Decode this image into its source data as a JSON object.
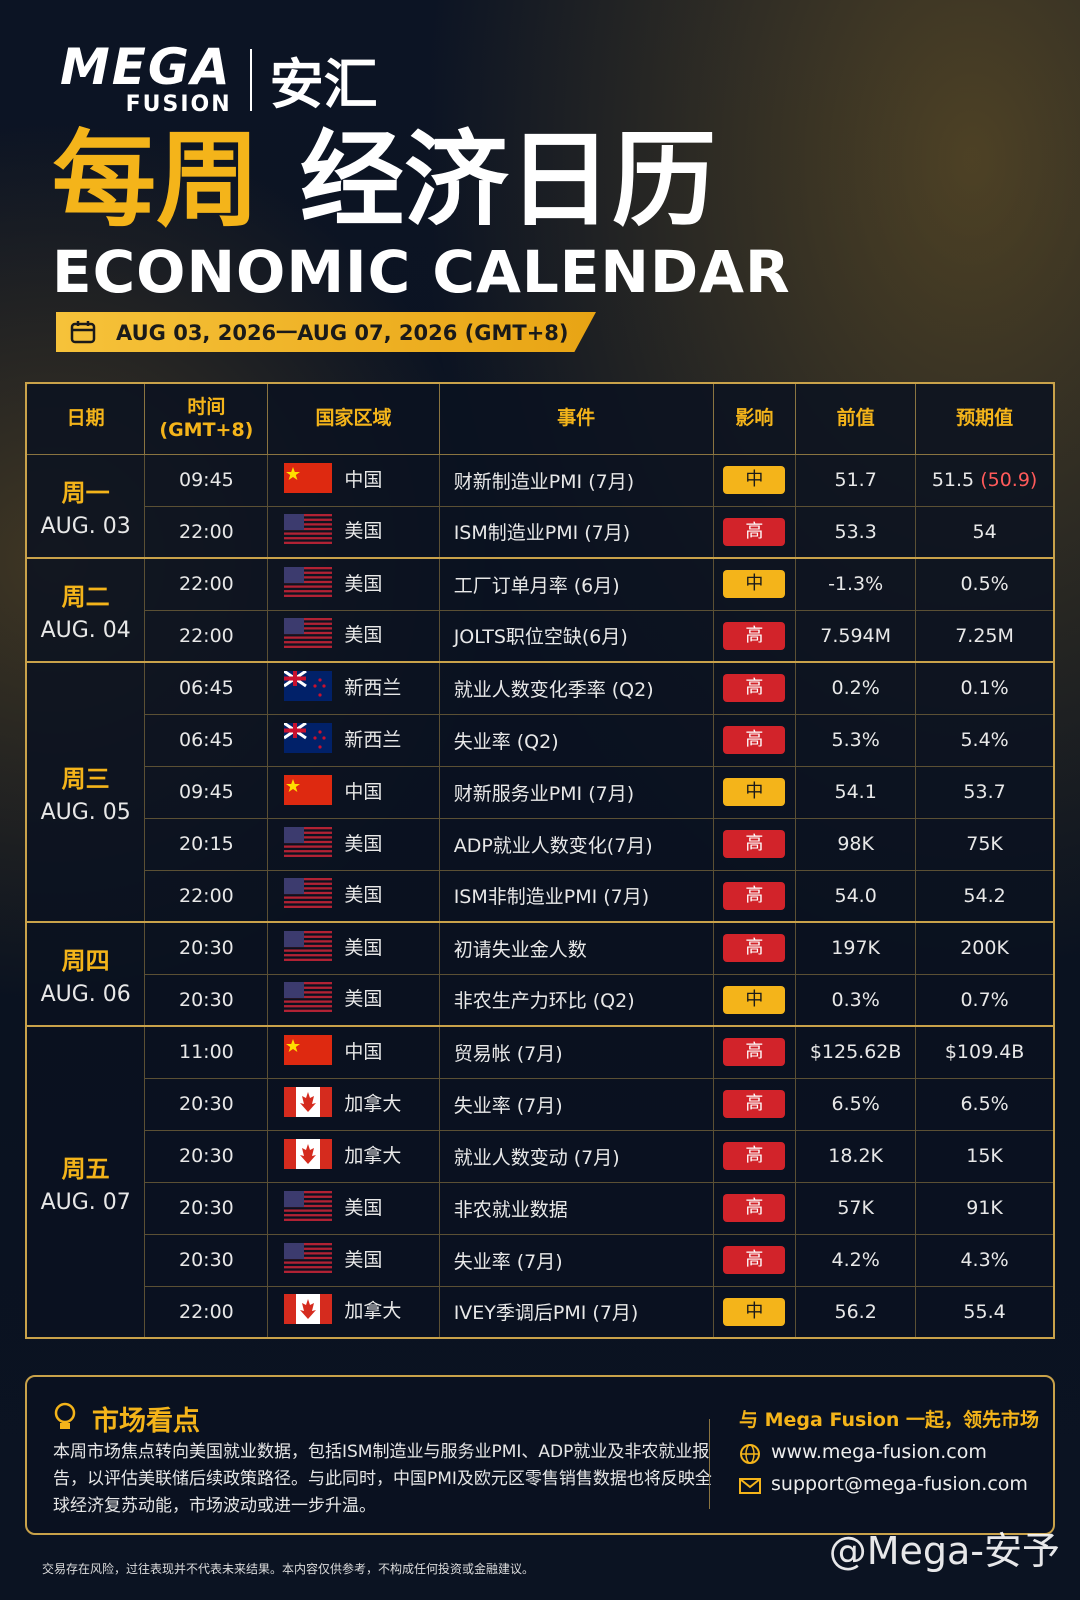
{
  "header": {
    "logo_mark": "MEGA",
    "logo_sub": "FUSION",
    "logo_cn": "安汇",
    "title_cn_1": "每周",
    "title_cn_2": "经济日历",
    "title_en": "ECONOMIC CALENDAR",
    "date_range": "AUG 03, 2026一AUG 07, 2026 (GMT+8)"
  },
  "table": {
    "columns": [
      "日期",
      [
        "时间",
        "(GMT+8)"
      ],
      "国家区域",
      "事件",
      "影响",
      "前值",
      "预期值"
    ],
    "days": [
      {
        "day": "周一",
        "date": "AUG. 03",
        "rows": [
          {
            "time": "09:45",
            "country": "中国",
            "event": "财新制造业PMI (7月)",
            "impact": "中",
            "previous": "51.7",
            "forecast": "51.5",
            "forecast_revised": "(50.9)"
          },
          {
            "time": "22:00",
            "country": "美国",
            "event": "ISM制造业PMI (7月)",
            "impact": "高",
            "previous": "53.3",
            "forecast": "54"
          }
        ]
      },
      {
        "day": "周二",
        "date": "AUG. 04",
        "rows": [
          {
            "time": "22:00",
            "country": "美国",
            "event": "工厂订单月率 (6月)",
            "impact": "中",
            "previous": "-1.3%",
            "forecast": "0.5%"
          },
          {
            "time": "22:00",
            "country": "美国",
            "event": "JOLTS职位空缺(6月)",
            "impact": "高",
            "previous": "7.594M",
            "forecast": "7.25M"
          }
        ]
      },
      {
        "day": "周三",
        "date": "AUG. 05",
        "rows": [
          {
            "time": "06:45",
            "country": "新西兰",
            "event": "就业人数变化季率 (Q2)",
            "impact": "高",
            "previous": "0.2%",
            "forecast": "0.1%"
          },
          {
            "time": "06:45",
            "country": "新西兰",
            "event": "失业率 (Q2)",
            "impact": "高",
            "previous": "5.3%",
            "forecast": "5.4%"
          },
          {
            "time": "09:45",
            "country": "中国",
            "event": "财新服务业PMI (7月)",
            "impact": "中",
            "previous": "54.1",
            "forecast": "53.7"
          },
          {
            "time": "20:15",
            "country": "美国",
            "event": "ADP就业人数变化(7月)",
            "impact": "高",
            "previous": "98K",
            "forecast": "75K"
          },
          {
            "time": "22:00",
            "country": "美国",
            "event": "ISM非制造业PMI (7月)",
            "impact": "高",
            "previous": "54.0",
            "forecast": "54.2"
          }
        ]
      },
      {
        "day": "周四",
        "date": "AUG. 06",
        "rows": [
          {
            "time": "20:30",
            "country": "美国",
            "event": "初请失业金人数",
            "impact": "高",
            "previous": "197K",
            "forecast": "200K"
          },
          {
            "time": "20:30",
            "country": "美国",
            "event": "非农生产力环比 (Q2)",
            "impact": "中",
            "previous": "0.3%",
            "forecast": "0.7%"
          }
        ]
      },
      {
        "day": "周五",
        "date": "AUG. 07",
        "rows": [
          {
            "time": "11:00",
            "country": "中国",
            "event": "贸易帐 (7月)",
            "impact": "高",
            "previous": "$125.62B",
            "forecast": "$109.4B"
          },
          {
            "time": "20:30",
            "country": "加拿大",
            "event": "失业率 (7月)",
            "impact": "高",
            "previous": "6.5%",
            "forecast": "6.5%"
          },
          {
            "time": "20:30",
            "country": "加拿大",
            "event": "就业人数变动 (7月)",
            "impact": "高",
            "previous": "18.2K",
            "forecast": "15K"
          },
          {
            "time": "20:30",
            "country": "美国",
            "event": "非农就业数据",
            "impact": "高",
            "previous": "57K",
            "forecast": "91K"
          },
          {
            "time": "20:30",
            "country": "美国",
            "event": "失业率 (7月)",
            "impact": "高",
            "previous": "4.2%",
            "forecast": "4.3%"
          },
          {
            "time": "22:00",
            "country": "加拿大",
            "event": "IVEY季调后PMI (7月)",
            "impact": "中",
            "previous": "56.2",
            "forecast": "55.4"
          }
        ]
      }
    ]
  },
  "market": {
    "title": "市场看点",
    "body": "本周市场焦点转向美国就业数据，包括ISM制造业与服务业PMI、ADP就业及非农就业报告，以评估美联储后续政策路径。与此同时，中国PMI及欧元区零售销售数据也将反映全球经济复苏动能，市场波动或进一步升温。",
    "slogan": "与 Mega Fusion 一起，领先市场",
    "website": "www.mega-fusion.com",
    "email": "support@mega-fusion.com"
  },
  "footer": {
    "disclaimer": "交易存在风险，过往表现并不代表未来结果。本内容仅供参考，不构成任何投资或金融建议。",
    "watermark": "@Mega-安予"
  }
}
